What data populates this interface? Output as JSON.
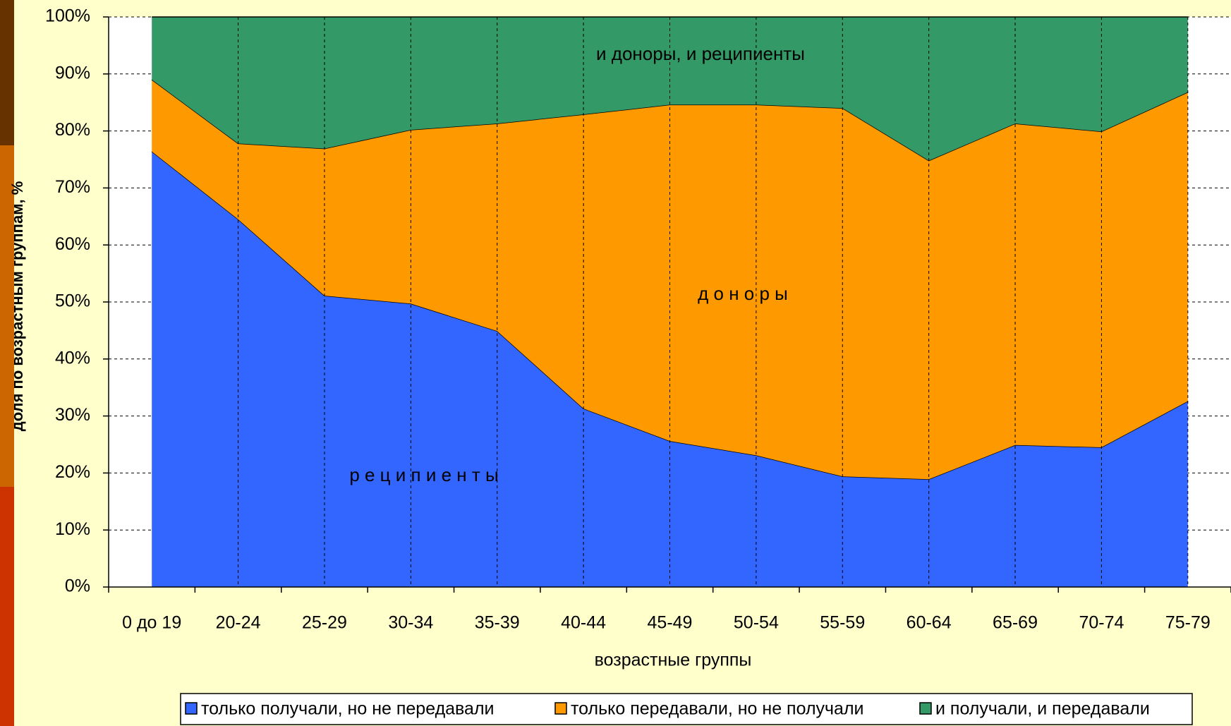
{
  "chart_data": {
    "type": "stacked_area",
    "y_label": "доля по возрастным группам, %",
    "x_label": "возрастные группы",
    "annotations": [
      "и доноры, и реципиенты",
      "д о н о р ы",
      "р е ц и п и е н т ы"
    ],
    "categories": [
      "0 до 19",
      "20-24",
      "25-29",
      "30-34",
      "35-39",
      "40-44",
      "45-49",
      "50-54",
      "55-59",
      "60-64",
      "65-69",
      "70-74",
      "75-79"
    ],
    "series": [
      {
        "name": "только получали, но не передавали",
        "color": "#3366ff",
        "values": [
          76.4,
          64.5,
          51.1,
          49.7,
          44.9,
          31.3,
          25.6,
          23.1,
          19.4,
          18.9,
          24.9,
          24.5,
          32.6
        ]
      },
      {
        "name": "только передавали, но не получали",
        "color": "#ff9900",
        "values": [
          12.6,
          13.3,
          25.8,
          30.5,
          36.4,
          51.6,
          59.0,
          61.5,
          64.6,
          55.9,
          56.4,
          55.4,
          54.2
        ]
      },
      {
        "name": "и получали, и передавали",
        "color": "#339966",
        "values": [
          11.0,
          22.2,
          23.1,
          19.8,
          18.7,
          17.1,
          15.4,
          15.4,
          16.0,
          25.2,
          18.7,
          20.1,
          13.2
        ]
      }
    ],
    "ylim": [
      0,
      100
    ],
    "yticks": [
      {
        "value": 0,
        "label": "0%"
      },
      {
        "value": 10,
        "label": "10%"
      },
      {
        "value": 20,
        "label": "20%"
      },
      {
        "value": 30,
        "label": "30%"
      },
      {
        "value": 40,
        "label": "40%"
      },
      {
        "value": 50,
        "label": "50%"
      },
      {
        "value": 60,
        "label": "60%"
      },
      {
        "value": 70,
        "label": "70%"
      },
      {
        "value": 80,
        "label": "80%"
      },
      {
        "value": 90,
        "label": "90%"
      },
      {
        "value": 100,
        "label": "100%"
      }
    ],
    "grid": true,
    "legend": "bottom"
  }
}
